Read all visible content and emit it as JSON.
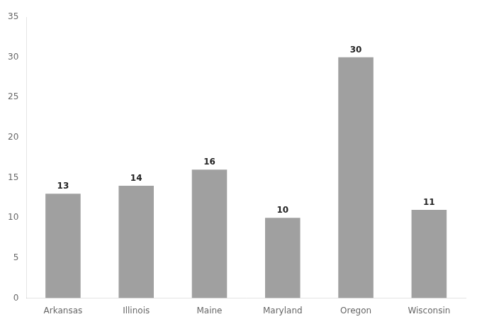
{
  "chart_data": {
    "type": "bar",
    "categories": [
      "Arkansas",
      "Illinois",
      "Maine",
      "Maryland",
      "Oregon",
      "Wisconsin"
    ],
    "values": [
      13,
      14,
      16,
      10,
      30,
      11
    ],
    "color": "#a0a0a0",
    "ylim": [
      0,
      35
    ],
    "yticks": [
      0,
      5,
      10,
      15,
      20,
      25,
      30,
      35
    ],
    "grid": false,
    "data_labels": true
  }
}
